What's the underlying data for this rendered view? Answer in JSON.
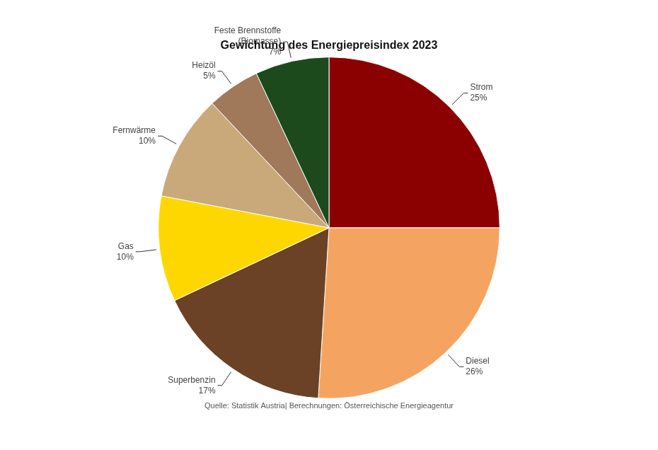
{
  "chart_data": {
    "type": "pie",
    "title": "Gewichtung des Energiepreisindex 2023",
    "categories": [
      "Strom",
      "Diesel",
      "Superbenzin",
      "Gas",
      "Fernwärme",
      "Heizöl",
      "Feste Brennstoffe\n(Biomasse)"
    ],
    "values": [
      25,
      26,
      17,
      10,
      10,
      5,
      7
    ],
    "value_labels": [
      "25%",
      "26%",
      "17%",
      "10%",
      "10%",
      "5%",
      "7%"
    ],
    "colors": [
      "#8B0000",
      "#F4A460",
      "#6B4226",
      "#FFD700",
      "#C9A97A",
      "#A0785A",
      "#1C4A1C"
    ],
    "data_labels": true,
    "annotations": [
      "Quelle: Statistik Austria| Berechnungen: Österreichische Energieagentur"
    ]
  }
}
